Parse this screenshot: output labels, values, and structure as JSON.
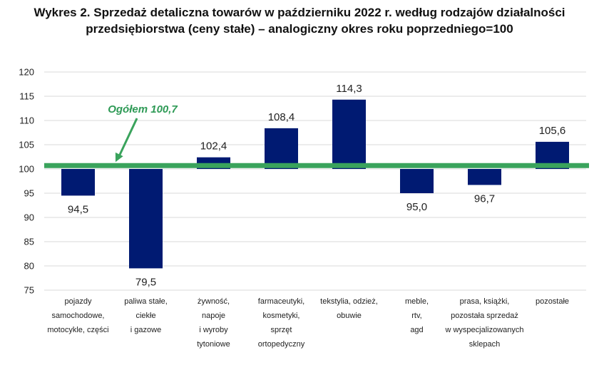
{
  "chart_data": {
    "type": "bar",
    "title": "Wykres 2. Sprzedaż detaliczna towarów w październiku 2022 r. według rodzajów działalności przedsiębiorstwa (ceny stałe) – analogiczny okres roku poprzedniego=100",
    "title_lines": [
      "Wykres 2. Sprzedaż detaliczna towarów w październiku 2022 r. według rodzajów działalności",
      "przedsiębiorstwa (ceny stałe) – analogiczny okres roku poprzedniego=100"
    ],
    "categories": [
      [
        "pojazdy",
        "samochodowe,",
        "motocykle, części"
      ],
      [
        "paliwa stałe,",
        "ciekłe",
        "i gazowe"
      ],
      [
        "żywność,",
        "napoje",
        "i wyroby",
        "tytoniowe"
      ],
      [
        "farmaceutyki,",
        "kosmetyki,",
        "sprzęt",
        "ortopedyczny"
      ],
      [
        "tekstylia, odzież,",
        "obuwie"
      ],
      [
        "meble,",
        "rtv,",
        "agd"
      ],
      [
        "prasa, książki,",
        "pozostała sprzedaż",
        "w wyspecjalizowanych",
        "sklepach"
      ],
      [
        "pozostałe"
      ]
    ],
    "values": [
      94.5,
      79.5,
      102.4,
      108.4,
      114.3,
      95.0,
      96.7,
      105.6
    ],
    "value_labels": [
      "94,5",
      "79,5",
      "102,4",
      "108,4",
      "114,3",
      "95,0",
      "96,7",
      "105,6"
    ],
    "baseline": 100,
    "ylim": [
      75,
      120
    ],
    "yticks": [
      75,
      80,
      85,
      90,
      95,
      100,
      105,
      110,
      115,
      120
    ],
    "grid": true,
    "xlabel": "",
    "ylabel": "",
    "reference_line": {
      "value": 100.7,
      "label": "Ogółem 100,7"
    },
    "colors": {
      "bar": "#001a72",
      "reference": "#3aa35c",
      "annotation": "#2e9a56",
      "grid": "#d9d9d9"
    }
  }
}
